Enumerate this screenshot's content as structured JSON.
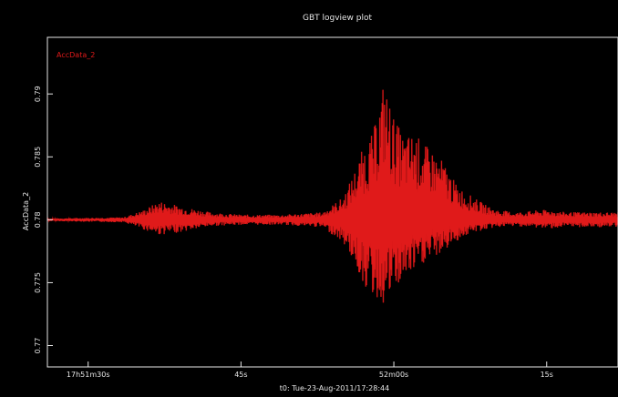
{
  "window": {
    "title": "GBT logview plot"
  },
  "colors": {
    "background": "#000000",
    "axis": "#e6e6e6",
    "signal": "#e01a1a",
    "signal_dark": "#8a0d0d"
  },
  "chart_data": {
    "type": "line",
    "title": "GBT logview plot",
    "ylabel": "AccData_2",
    "xlabel": "t0: Tue-23-Aug-2011/17:28:44",
    "legend": {
      "label": "AccData_2",
      "position": "top-left"
    },
    "grid": false,
    "x_unit": "seconds after t0",
    "xlim": [
      -4,
      52
    ],
    "ylim": [
      0.7683,
      0.7945
    ],
    "baseline": 0.78,
    "x_ticks": [
      {
        "value": 0,
        "label": "17h51m30s"
      },
      {
        "value": 15,
        "label": "45s"
      },
      {
        "value": 30,
        "label": "52m00s"
      },
      {
        "value": 45,
        "label": "15s"
      }
    ],
    "y_ticks": [
      {
        "value": 0.77,
        "label": "0.77"
      },
      {
        "value": 0.775,
        "label": "0.775"
      },
      {
        "value": 0.78,
        "label": "0.78"
      },
      {
        "value": 0.785,
        "label": "0.785"
      },
      {
        "value": 0.79,
        "label": "0.79"
      }
    ],
    "series": [
      {
        "name": "AccData_2",
        "envelope": {
          "x": [
            -4,
            3.5,
            5.5,
            7,
            9,
            12,
            15,
            19,
            23,
            25,
            26,
            27,
            28,
            29,
            30,
            31,
            32,
            33,
            34,
            35,
            36,
            37,
            38,
            39,
            40,
            42,
            45,
            47,
            52
          ],
          "max": [
            0.7801,
            0.7802,
            0.7808,
            0.7815,
            0.7811,
            0.7806,
            0.7804,
            0.7804,
            0.7806,
            0.7818,
            0.7836,
            0.7858,
            0.787,
            0.7912,
            0.7882,
            0.7866,
            0.787,
            0.786,
            0.7854,
            0.7845,
            0.783,
            0.7822,
            0.7817,
            0.7812,
            0.7808,
            0.7806,
            0.7808,
            0.7806,
            0.7806
          ],
          "min": [
            0.7799,
            0.7798,
            0.7792,
            0.7788,
            0.779,
            0.7795,
            0.7796,
            0.7796,
            0.7794,
            0.7782,
            0.7768,
            0.7748,
            0.7738,
            0.7732,
            0.7742,
            0.7752,
            0.7758,
            0.7765,
            0.777,
            0.7775,
            0.7782,
            0.7787,
            0.779,
            0.7792,
            0.7794,
            0.7795,
            0.7793,
            0.7794,
            0.7794
          ]
        }
      }
    ]
  }
}
